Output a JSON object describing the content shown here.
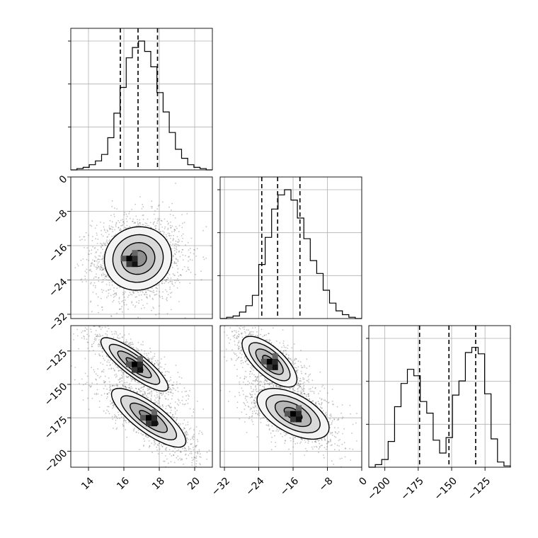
{
  "chart_data": {
    "type": "corner",
    "parameters": [
      {
        "id": "p0",
        "range": [
          13,
          21
        ],
        "ticks": [
          14,
          16,
          18,
          20
        ],
        "quantiles": [
          15.8,
          16.8,
          17.9
        ],
        "hist": [
          0.0,
          0.01,
          0.02,
          0.04,
          0.07,
          0.12,
          0.25,
          0.44,
          0.64,
          0.87,
          0.95,
          1.0,
          0.92,
          0.8,
          0.6,
          0.45,
          0.29,
          0.16,
          0.09,
          0.04,
          0.02,
          0.01,
          0.0
        ]
      },
      {
        "id": "p1",
        "range": [
          -33,
          0
        ],
        "ticks": [
          -32,
          -24,
          -16,
          -8,
          0
        ],
        "quantiles": [
          -23.3,
          -19.6,
          -14.4
        ],
        "hist": [
          0.0,
          0.01,
          0.02,
          0.05,
          0.1,
          0.18,
          0.42,
          0.63,
          0.85,
          0.96,
          1.0,
          0.92,
          0.78,
          0.62,
          0.45,
          0.35,
          0.22,
          0.12,
          0.06,
          0.03,
          0.01,
          0.0
        ]
      },
      {
        "id": "p2",
        "range": [
          -212,
          -106
        ],
        "ticks": [
          -200,
          -175,
          -150,
          -125
        ],
        "quantiles": [
          -174,
          -152,
          -132
        ],
        "hist": [
          0.0,
          0.02,
          0.06,
          0.2,
          0.47,
          0.65,
          0.76,
          0.71,
          0.51,
          0.42,
          0.21,
          0.11,
          0.23,
          0.56,
          0.67,
          0.89,
          0.93,
          0.88,
          0.57,
          0.22,
          0.04,
          0.01
        ]
      }
    ],
    "pairs": [
      {
        "x": "p0",
        "y": "p1",
        "blobs": [
          {
            "cx": 16.8,
            "cy": -19.0,
            "sx": 0.95,
            "sy": 3.7,
            "rho": 0.05,
            "w": 1.0,
            "peak": [
              16.3,
              -19.0
            ]
          }
        ]
      },
      {
        "x": "p0",
        "y": "p2",
        "blobs": [
          {
            "cx": 16.6,
            "cy": -135,
            "sx": 0.95,
            "sy": 10,
            "rho": -0.85,
            "w": 0.5
          },
          {
            "cx": 17.4,
            "cy": -175,
            "sx": 1.05,
            "sy": 11,
            "rho": -0.8,
            "w": 0.5
          }
        ]
      },
      {
        "x": "p1",
        "y": "p2",
        "blobs": [
          {
            "cx": -21.5,
            "cy": -133,
            "sx": 3.2,
            "sy": 9.5,
            "rho": -0.7,
            "w": 0.5
          },
          {
            "cx": -16.0,
            "cy": -172,
            "sx": 4.2,
            "sy": 9.5,
            "rho": -0.55,
            "w": 0.5
          }
        ]
      }
    ],
    "contour_levels_sigma": [
      0.5,
      1.0,
      1.5,
      2.0
    ],
    "grid": true,
    "colors": {
      "ink": "#000000",
      "grid": "#b0b0b0",
      "scatter": "#555555"
    }
  }
}
